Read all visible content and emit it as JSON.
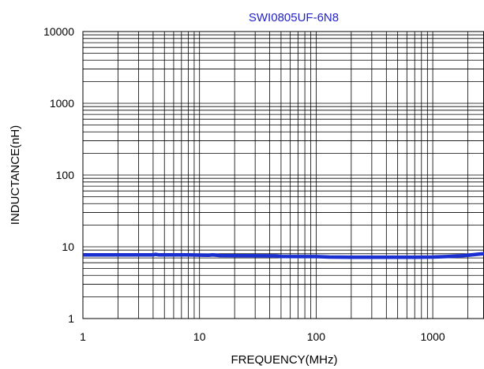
{
  "chart_data": {
    "type": "line",
    "title": "SWI0805UF-6N8",
    "xlabel": "FREQUENCY(MHz)",
    "ylabel": "INDUCTANCE(nH)",
    "x_scale": "log",
    "y_scale": "log",
    "xlim": [
      1,
      3000
    ],
    "ylim": [
      1,
      10000
    ],
    "x_ticks": [
      "1",
      "10",
      "100",
      "1000"
    ],
    "y_ticks": [
      "1",
      "10",
      "100",
      "1000",
      "10000"
    ],
    "grid": true,
    "series": [
      {
        "x": [
          1,
          2,
          4,
          4.2,
          4.5,
          8,
          12,
          13,
          15,
          30,
          45,
          50,
          100,
          130,
          200,
          300,
          500,
          700,
          1000,
          1300,
          1700,
          2000,
          2500,
          3000
        ],
        "y": [
          7.7,
          7.7,
          7.7,
          7.85,
          7.7,
          7.7,
          7.6,
          7.7,
          7.55,
          7.5,
          7.45,
          7.35,
          7.3,
          7.2,
          7.15,
          7.15,
          7.15,
          7.15,
          7.2,
          7.3,
          7.45,
          7.6,
          7.9,
          8.1
        ]
      }
    ],
    "colors": {
      "title": "#2222cc",
      "series": "#1a2fd0",
      "grid": "#000000"
    }
  }
}
